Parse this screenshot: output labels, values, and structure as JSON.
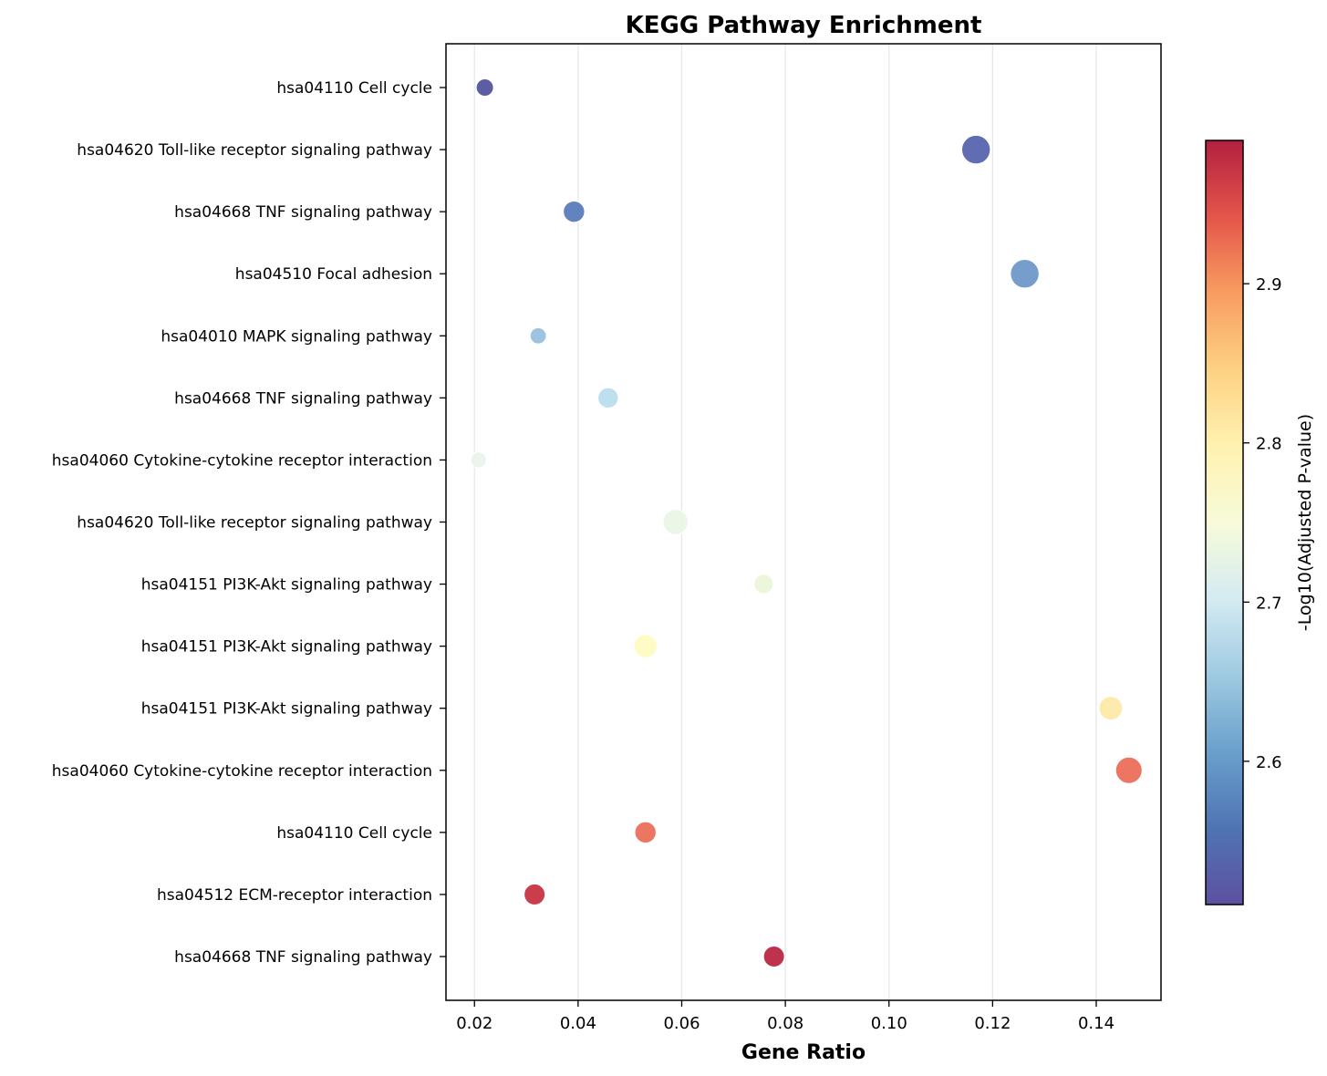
{
  "chart_data": {
    "type": "scatter",
    "title": "KEGG Pathway Enrichment",
    "xlabel": "Gene Ratio",
    "ylabel": "",
    "xlim": [
      0.0145,
      0.1525
    ],
    "xticks": [
      "0.02",
      "0.04",
      "0.06",
      "0.08",
      "0.10",
      "0.12",
      "0.14"
    ],
    "xtick_values": [
      0.02,
      0.04,
      0.06,
      0.08,
      0.1,
      0.12,
      0.14
    ],
    "grid": "vertical",
    "colormap": "RdYlBu_r",
    "colorbar": {
      "label": "-Log10(Adjusted P-value)",
      "range": [
        2.51,
        2.99
      ],
      "ticks": [
        "2.6",
        "2.7",
        "2.8",
        "2.9"
      ],
      "tick_values": [
        2.6,
        2.7,
        2.8,
        2.9
      ]
    },
    "points": [
      {
        "pathway": "hsa04110 Cell cycle",
        "gene_ratio": 0.022,
        "neg_log10_padj": 2.51,
        "color": "#4f4f9e",
        "size_rel": 0.38
      },
      {
        "pathway": "hsa04620 Toll-like receptor signaling pathway",
        "gene_ratio": 0.1168,
        "neg_log10_padj": 2.525,
        "color": "#5461ab",
        "size_rel": 1.0
      },
      {
        "pathway": "hsa04668 TNF signaling pathway",
        "gene_ratio": 0.0392,
        "neg_log10_padj": 2.545,
        "color": "#5578b9",
        "size_rel": 0.6
      },
      {
        "pathway": "hsa04510 Focal adhesion",
        "gene_ratio": 0.1262,
        "neg_log10_padj": 2.585,
        "color": "#6a95c8",
        "size_rel": 1.0
      },
      {
        "pathway": "hsa04010 MAPK signaling pathway",
        "gene_ratio": 0.0323,
        "neg_log10_padj": 2.615,
        "color": "#94bfdf",
        "size_rel": 0.32
      },
      {
        "pathway": "hsa04668 TNF signaling pathway",
        "gene_ratio": 0.0458,
        "neg_log10_padj": 2.65,
        "color": "#b8dcec",
        "size_rel": 0.55
      },
      {
        "pathway": "hsa04060 Cytokine-cytokine receptor interaction",
        "gene_ratio": 0.0208,
        "neg_log10_padj": 2.715,
        "color": "#e9f4ec",
        "size_rel": 0.3
      },
      {
        "pathway": "hsa04620 Toll-like receptor signaling pathway",
        "gene_ratio": 0.0588,
        "neg_log10_padj": 2.725,
        "color": "#eaf5e4",
        "size_rel": 0.8
      },
      {
        "pathway": "hsa04151 PI3K-Akt signaling pathway",
        "gene_ratio": 0.0758,
        "neg_log10_padj": 2.73,
        "color": "#eaf5d8",
        "size_rel": 0.48
      },
      {
        "pathway": "hsa04151 PI3K-Akt signaling pathway",
        "gene_ratio": 0.053,
        "neg_log10_padj": 2.775,
        "color": "#fffbc0",
        "size_rel": 0.7
      },
      {
        "pathway": "hsa04151 PI3K-Akt signaling pathway",
        "gene_ratio": 0.1428,
        "neg_log10_padj": 2.79,
        "color": "#fde8a6",
        "size_rel": 0.72
      },
      {
        "pathway": "hsa04060 Cytokine-cytokine receptor interaction",
        "gene_ratio": 0.1463,
        "neg_log10_padj": 2.92,
        "color": "#ec6a55",
        "size_rel": 0.88
      },
      {
        "pathway": "hsa04110 Cell cycle",
        "gene_ratio": 0.053,
        "neg_log10_padj": 2.925,
        "color": "#ec6a55",
        "size_rel": 0.6
      },
      {
        "pathway": "hsa04512 ECM-receptor interaction",
        "gene_ratio": 0.0316,
        "neg_log10_padj": 2.975,
        "color": "#c52d3e",
        "size_rel": 0.58
      },
      {
        "pathway": "hsa04668 TNF signaling pathway",
        "gene_ratio": 0.0778,
        "neg_log10_padj": 2.985,
        "color": "#b8213e",
        "size_rel": 0.58
      }
    ]
  }
}
